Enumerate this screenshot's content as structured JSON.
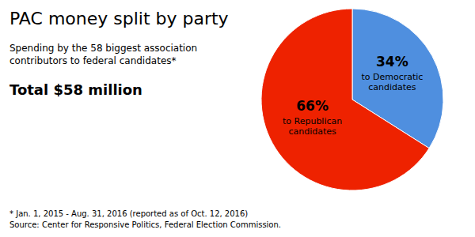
{
  "chart_data": {
    "type": "pie",
    "title": "PAC money split by party",
    "subtitle": "Spending by the 58 biggest association\ncontributors to federal candidates*",
    "annotations": [
      "Total $58 million",
      "* Jan. 1, 2015 - Aug. 31, 2016 (reported as of Oct. 12, 2016)\nSource: Center for Responsive Politics, Federal Election Commission."
    ],
    "categories": [
      "to Democratic\ncandidates",
      "to Republican\ncandidates"
    ],
    "values": [
      34,
      66
    ],
    "value_labels": [
      "34%",
      "66%"
    ],
    "colors": [
      "#4f8fdf",
      "#ee2200"
    ],
    "data_labels": true
  }
}
